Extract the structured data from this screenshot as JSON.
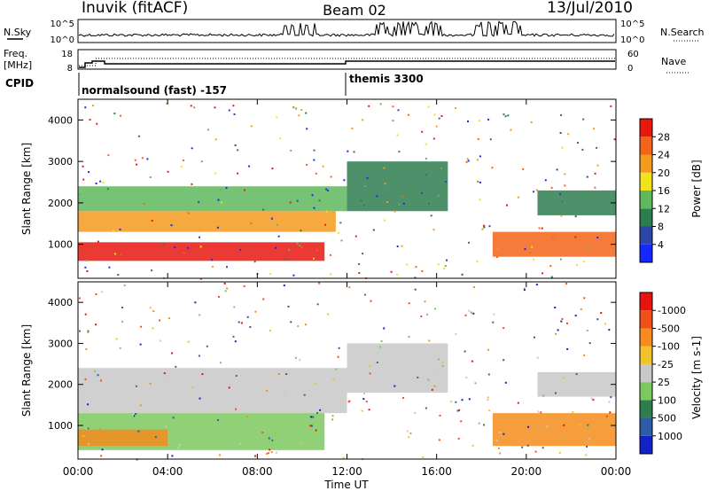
{
  "header": {
    "station": "Inuvik  (fitACF)",
    "beam": "Beam 02",
    "date": "13/Jul/2010"
  },
  "time_axis": {
    "ticks": [
      "00:00",
      "04:00",
      "08:00",
      "12:00",
      "16:00",
      "20:00",
      "00:00"
    ],
    "title": "Time UT"
  },
  "panels": {
    "sky_search": {
      "left_label": "N.Sky",
      "left_ticks": [
        "10^5",
        "10^0"
      ],
      "right_label": "N.Search",
      "right_ticks": [
        "10^5",
        "10^0"
      ]
    },
    "freq_nave": {
      "left_label_line1": "Freq.",
      "left_label_line2": "[MHz]",
      "left_ticks": [
        "18",
        "8"
      ],
      "right_label": "Nave",
      "right_ticks": [
        "60",
        "0"
      ]
    },
    "cpid": {
      "label": "CPID",
      "programs": [
        {
          "name": "normalsound (fast) -157",
          "start_h": 0,
          "end_h": 12
        },
        {
          "name": "themis 3300",
          "start_h": 12,
          "end_h": 24
        }
      ]
    }
  },
  "chart_data": [
    {
      "type": "heatmap",
      "title": "",
      "xlabel": "Time UT",
      "ylabel": "Slant Range [km]",
      "xlim": [
        0,
        24
      ],
      "ylim": [
        180,
        4500
      ],
      "y_ticks": [
        1000,
        2000,
        3000,
        4000
      ],
      "colorbar": {
        "label": "Power [dB]",
        "ticks": [
          "4",
          "8",
          "12",
          "16",
          "20",
          "24",
          "28"
        ],
        "colors": [
          "#1428ff",
          "#2d44a8",
          "#2e7d4f",
          "#5fb85e",
          "#f2e21b",
          "#f59a1c",
          "#f26418",
          "#e8180f"
        ]
      },
      "bands": [
        {
          "start_h": 0,
          "end_h": 11,
          "range_km": [
            600,
            1050
          ],
          "level": "28"
        },
        {
          "start_h": 0,
          "end_h": 11.5,
          "range_km": [
            1300,
            1800
          ],
          "level": "20"
        },
        {
          "start_h": 0,
          "end_h": 12,
          "range_km": [
            1800,
            2400
          ],
          "level": "12"
        },
        {
          "start_h": 12,
          "end_h": 16.5,
          "range_km": [
            1800,
            3000
          ],
          "level": "8"
        },
        {
          "start_h": 18.5,
          "end_h": 24,
          "range_km": [
            700,
            1300
          ],
          "level": "24"
        },
        {
          "start_h": 20.5,
          "end_h": 24,
          "range_km": [
            1700,
            2300
          ],
          "level": "8"
        }
      ]
    },
    {
      "type": "heatmap",
      "title": "",
      "xlabel": "Time UT",
      "ylabel": "Slant Range [km]",
      "xlim": [
        0,
        24
      ],
      "ylim": [
        180,
        4500
      ],
      "y_ticks": [
        1000,
        2000,
        3000,
        4000
      ],
      "colorbar": {
        "label": "Velocity [m s-1]",
        "ticks": [
          "1000",
          "500",
          "100",
          "25",
          "-25",
          "-100",
          "-500",
          "-1000"
        ],
        "colors": [
          "#1420c8",
          "#2d5da8",
          "#2f7d4e",
          "#7cc95f",
          "#c8c8c8",
          "#f2c22b",
          "#f58c1c",
          "#f24f18",
          "#e8130f"
        ]
      },
      "bands": [
        {
          "start_h": 0,
          "end_h": 12,
          "range_km": [
            1300,
            2400
          ],
          "level": "25"
        },
        {
          "start_h": 0,
          "end_h": 11,
          "range_km": [
            400,
            1300
          ],
          "level": "100"
        },
        {
          "start_h": 0,
          "end_h": 4,
          "range_km": [
            500,
            900
          ],
          "level": "-100"
        },
        {
          "start_h": 12,
          "end_h": 16.5,
          "range_km": [
            1800,
            3000
          ],
          "level": "25"
        },
        {
          "start_h": 18.5,
          "end_h": 24,
          "range_km": [
            500,
            1300
          ],
          "level": "-100"
        },
        {
          "start_h": 20.5,
          "end_h": 24,
          "range_km": [
            1700,
            2300
          ],
          "level": "25"
        }
      ]
    }
  ]
}
